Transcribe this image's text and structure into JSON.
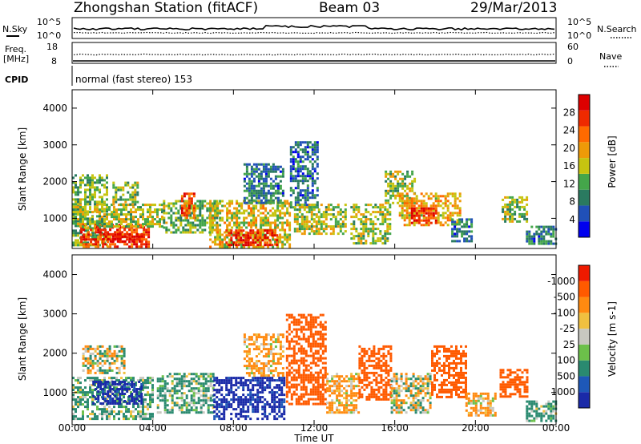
{
  "header": {
    "station": "Zhongshan Station (fitACF)",
    "beam": "Beam 03",
    "date": "29/Mar/2013"
  },
  "top_panels": {
    "nsky_label": "N.Sky",
    "nsearch_label": "N.Search",
    "freq_label_1": "Freq.",
    "freq_label_2": "[MHz]",
    "nave_label": "Nave",
    "cpid_label": "CPID",
    "cpid_text": "normal (fast stereo) 153",
    "noise_ticks_left": [
      "10^5",
      "10^0"
    ],
    "noise_ticks_right": [
      "10^5",
      "10^0"
    ],
    "freq_ticks": [
      "18",
      "8"
    ],
    "nave_ticks": [
      "60",
      "0"
    ]
  },
  "chart_data": [
    {
      "type": "heatmap",
      "quantity": "Power",
      "ylabel": "Slant Range [km]",
      "xlabel": "Time UT",
      "xlim": [
        0,
        24
      ],
      "ylim": [
        180,
        4500
      ],
      "x_ticks": [
        "00:00",
        "04:00",
        "08:00",
        "12:00",
        "16:00",
        "20:00",
        "00:00"
      ],
      "y_ticks": [
        "1000",
        "2000",
        "3000",
        "4000"
      ],
      "colorbar": {
        "label": "Power [dB]",
        "ticks": [
          "4",
          "8",
          "12",
          "16",
          "20",
          "24",
          "28"
        ],
        "range": [
          0,
          30
        ],
        "colors": [
          "#0000ee",
          "#2050b8",
          "#2a7a60",
          "#44a64a",
          "#c6c410",
          "#ee9a08",
          "#ff6a00",
          "#ee2a00",
          "#dd0000"
        ]
      },
      "regions": [
        {
          "t0": 0.0,
          "t1": 1.7,
          "r0": 300,
          "r1": 2200,
          "p": 12
        },
        {
          "t0": 0.4,
          "t1": 3.8,
          "r0": 250,
          "r1": 850,
          "p": 24
        },
        {
          "t0": 1.5,
          "t1": 3.5,
          "r0": 350,
          "r1": 600,
          "p": 28
        },
        {
          "t0": 0.0,
          "t1": 4.5,
          "r0": 800,
          "r1": 1400,
          "p": 14
        },
        {
          "t0": 2.0,
          "t1": 3.3,
          "r0": 1400,
          "r1": 2000,
          "p": 13
        },
        {
          "t0": 4.5,
          "t1": 7.2,
          "r0": 600,
          "r1": 1500,
          "p": 12
        },
        {
          "t0": 5.4,
          "t1": 6.0,
          "r0": 1000,
          "r1": 1700,
          "p": 24
        },
        {
          "t0": 6.8,
          "t1": 10.8,
          "r0": 250,
          "r1": 1500,
          "p": 16
        },
        {
          "t0": 7.6,
          "t1": 10.2,
          "r0": 250,
          "r1": 700,
          "p": 27
        },
        {
          "t0": 8.5,
          "t1": 10.5,
          "r0": 1400,
          "r1": 2500,
          "p": 8
        },
        {
          "t0": 10.8,
          "t1": 12.2,
          "r0": 1300,
          "r1": 3100,
          "p": 7
        },
        {
          "t0": 11.0,
          "t1": 13.6,
          "r0": 600,
          "r1": 1400,
          "p": 14
        },
        {
          "t0": 13.8,
          "t1": 15.8,
          "r0": 300,
          "r1": 1400,
          "p": 14
        },
        {
          "t0": 15.5,
          "t1": 17.0,
          "r0": 1400,
          "r1": 2300,
          "p": 14
        },
        {
          "t0": 16.2,
          "t1": 19.2,
          "r0": 800,
          "r1": 1700,
          "p": 18
        },
        {
          "t0": 16.8,
          "t1": 18.0,
          "r0": 900,
          "r1": 1300,
          "p": 26
        },
        {
          "t0": 18.8,
          "t1": 19.8,
          "r0": 400,
          "r1": 1000,
          "p": 8
        },
        {
          "t0": 21.3,
          "t1": 22.6,
          "r0": 900,
          "r1": 1600,
          "p": 13
        },
        {
          "t0": 22.5,
          "t1": 24.0,
          "r0": 300,
          "r1": 800,
          "p": 8
        }
      ]
    },
    {
      "type": "heatmap",
      "quantity": "Velocity",
      "ylabel": "Slant Range [km]",
      "xlabel": "Time UT",
      "xlim": [
        0,
        24
      ],
      "ylim": [
        180,
        4500
      ],
      "x_ticks": [
        "00:00",
        "04:00",
        "08:00",
        "12:00",
        "16:00",
        "20:00",
        "00:00"
      ],
      "y_ticks": [
        "1000",
        "2000",
        "3000",
        "4000"
      ],
      "colorbar": {
        "label": "Velocity [m s-1]",
        "ticks": [
          "1000",
          "500",
          "100",
          "25",
          "-25",
          "-100",
          "-500",
          "-1000"
        ],
        "colors": [
          "#1a2aa8",
          "#1e58b8",
          "#2a8a70",
          "#6cc04a",
          "#c8c8c0",
          "#f0c040",
          "#ff8a10",
          "#ff5a00",
          "#ee1a00"
        ]
      },
      "regions": [
        {
          "t0": 0.0,
          "t1": 4.0,
          "r0": 300,
          "r1": 1400,
          "v": 100
        },
        {
          "t0": 1.0,
          "t1": 3.4,
          "r0": 700,
          "r1": 1300,
          "v": 800
        },
        {
          "t0": 0.5,
          "t1": 2.6,
          "r0": 1500,
          "r1": 2200,
          "v": 0
        },
        {
          "t0": 4.2,
          "t1": 7.0,
          "r0": 500,
          "r1": 1500,
          "v": 100
        },
        {
          "t0": 7.0,
          "t1": 10.5,
          "r0": 300,
          "r1": 1400,
          "v": 800
        },
        {
          "t0": 8.5,
          "t1": 10.5,
          "r0": 1400,
          "r1": 2500,
          "v": -100
        },
        {
          "t0": 10.6,
          "t1": 12.6,
          "r0": 700,
          "r1": 3000,
          "v": -500
        },
        {
          "t0": 12.6,
          "t1": 14.2,
          "r0": 500,
          "r1": 1500,
          "v": -100
        },
        {
          "t0": 14.2,
          "t1": 15.8,
          "r0": 800,
          "r1": 2200,
          "v": -500
        },
        {
          "t0": 15.8,
          "t1": 17.8,
          "r0": 500,
          "r1": 1500,
          "v": 0
        },
        {
          "t0": 17.8,
          "t1": 19.5,
          "r0": 900,
          "r1": 2200,
          "v": -500
        },
        {
          "t0": 19.5,
          "t1": 21.0,
          "r0": 400,
          "r1": 1000,
          "v": -100
        },
        {
          "t0": 21.2,
          "t1": 22.6,
          "r0": 900,
          "r1": 1600,
          "v": -500
        },
        {
          "t0": 22.5,
          "t1": 24.0,
          "r0": 300,
          "r1": 800,
          "v": 100
        }
      ]
    }
  ]
}
